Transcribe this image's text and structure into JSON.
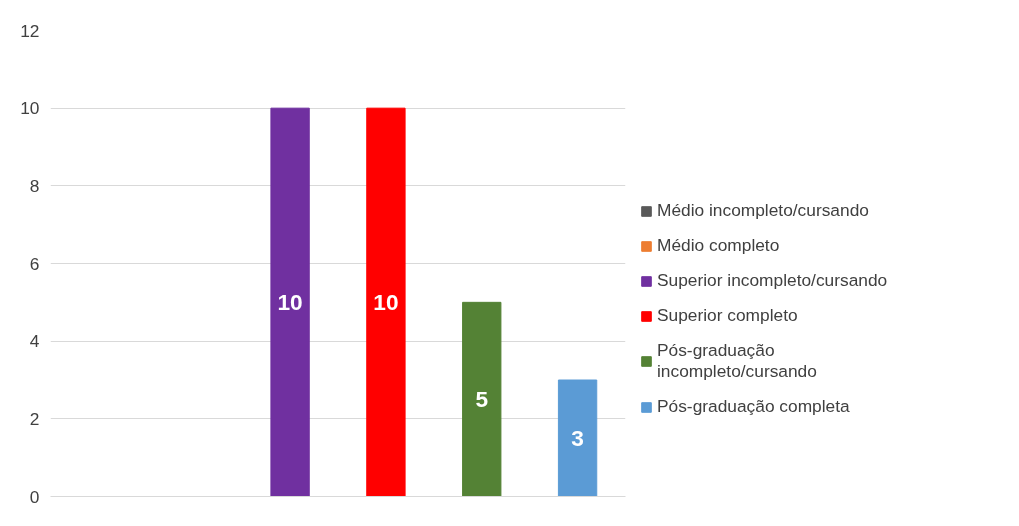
{
  "chart_data": {
    "type": "bar",
    "categories": [
      null
    ],
    "series": [
      {
        "name": "Médio incompleto/cursando",
        "color": "#595959",
        "values": [
          0
        ],
        "value_labels": [
          null
        ]
      },
      {
        "name": "Médio completo",
        "color": "#ed7d31",
        "values": [
          0
        ],
        "value_labels": [
          null
        ]
      },
      {
        "name": "Superior incompleto/cursando",
        "color": "#7030a0",
        "values": [
          10
        ],
        "value_labels": [
          "10"
        ]
      },
      {
        "name": "Superior completo",
        "color": "#ff0000",
        "values": [
          10
        ],
        "value_labels": [
          "10"
        ]
      },
      {
        "name": "Pós-graduação incompleto/cursando",
        "color": "#548235",
        "values": [
          5
        ],
        "value_labels": [
          "5"
        ]
      },
      {
        "name": "Pós-graduação completa",
        "color": "#5b9bd5",
        "values": [
          3
        ],
        "value_labels": [
          "3"
        ]
      }
    ],
    "ylim": [
      0,
      12
    ],
    "yticks": [
      0,
      2,
      4,
      6,
      8,
      10,
      12
    ],
    "grid": "y",
    "legend": "right"
  }
}
